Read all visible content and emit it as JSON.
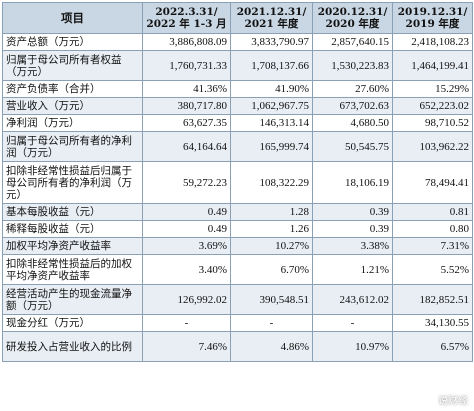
{
  "header": {
    "label": "项目",
    "columns": [
      {
        "line1": "2022.3.31/",
        "line2": "2022 年 1-3 月"
      },
      {
        "line1": "2021.12.31/",
        "line2": "2021 年度"
      },
      {
        "line1": "2020.12.31/",
        "line2": "2020 年度"
      },
      {
        "line1": "2019.12.31/",
        "line2": "2019 年度"
      }
    ]
  },
  "rows": [
    {
      "label": "资产总额（万元）",
      "values": [
        "3,886,808.09",
        "3,833,790.97",
        "2,857,640.15",
        "2,418,108.23"
      ]
    },
    {
      "label": "归属于母公司所有者权益（万元）",
      "values": [
        "1,760,731.33",
        "1,708,137.66",
        "1,530,223.83",
        "1,464,199.41"
      ]
    },
    {
      "label": "资产负债率（合并）",
      "values": [
        "41.36%",
        "41.90%",
        "27.60%",
        "15.29%"
      ]
    },
    {
      "label": "营业收入（万元）",
      "values": [
        "380,717.80",
        "1,062,967.75",
        "673,702.63",
        "652,223.02"
      ]
    },
    {
      "label": "净利润（万元）",
      "values": [
        "63,627.35",
        "146,313.14",
        "4,680.50",
        "98,710.52"
      ]
    },
    {
      "label": "归属于母公司所有者的净利润（万元）",
      "values": [
        "64,164.64",
        "165,999.74",
        "50,545.75",
        "103,962.22"
      ]
    },
    {
      "label": "扣除非经常性损益后归属于母公司所有者的净利润（万元）",
      "values": [
        "59,272.23",
        "108,322.29",
        "18,106.19",
        "78,494.41"
      ]
    },
    {
      "label": "基本每股收益（元）",
      "values": [
        "0.49",
        "1.28",
        "0.39",
        "0.81"
      ]
    },
    {
      "label": "稀释每股收益（元）",
      "values": [
        "0.49",
        "1.26",
        "0.39",
        "0.80"
      ]
    },
    {
      "label": "加权平均净资产收益率",
      "values": [
        "3.69%",
        "10.27%",
        "3.38%",
        "7.31%"
      ]
    },
    {
      "label": "扣除非经常性损益后的加权平均净资产收益率",
      "values": [
        "3.40%",
        "6.70%",
        "1.21%",
        "5.52%"
      ]
    },
    {
      "label": "经营活动产生的现金流量净额（万元）",
      "values": [
        "126,992.02",
        "390,548.51",
        "243,612.02",
        "182,852.51"
      ]
    },
    {
      "label": "现金分红（万元）",
      "values": [
        "-",
        "-",
        "-",
        "34,130.55"
      ]
    },
    {
      "label": "研发投入占营业收入的比例",
      "values": [
        "7.46%",
        "4.86%",
        "10.97%",
        "6.57%"
      ]
    }
  ],
  "watermark": "说财经"
}
